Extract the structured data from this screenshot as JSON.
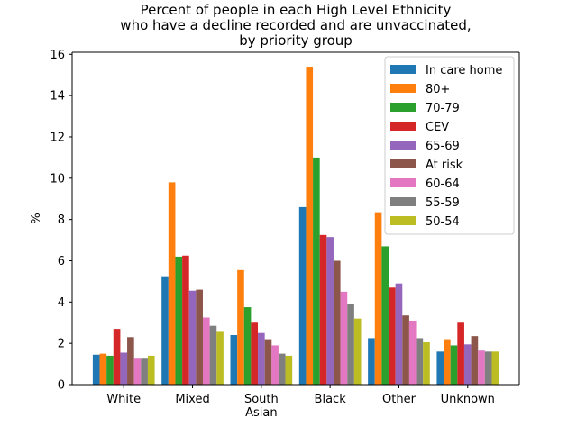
{
  "chart_data": {
    "type": "bar",
    "title": [
      "Percent of people in each High Level Ethnicity",
      "who have a decline recorded and are unvaccinated,",
      "by priority group"
    ],
    "xlabel": "",
    "ylabel": "%",
    "ylim": [
      0,
      16.1
    ],
    "yticks": [
      0,
      2,
      4,
      6,
      8,
      10,
      12,
      14,
      16
    ],
    "grid": false,
    "legend_position": "top-right",
    "categories": [
      [
        "White"
      ],
      [
        "Mixed"
      ],
      [
        "South",
        "Asian"
      ],
      [
        "Black"
      ],
      [
        "Other"
      ],
      [
        "Unknown"
      ]
    ],
    "series": [
      {
        "name": "In care home",
        "color": "#1f77b4",
        "values": [
          1.45,
          5.25,
          2.4,
          8.6,
          2.25,
          1.6
        ]
      },
      {
        "name": "80+",
        "color": "#ff7f0e",
        "values": [
          1.5,
          9.8,
          5.55,
          15.4,
          8.35,
          2.2
        ]
      },
      {
        "name": "70-79",
        "color": "#2ca02c",
        "values": [
          1.4,
          6.2,
          3.75,
          11.0,
          6.7,
          1.9
        ]
      },
      {
        "name": "CEV",
        "color": "#d62728",
        "values": [
          2.7,
          6.25,
          3.0,
          7.25,
          4.7,
          3.0
        ]
      },
      {
        "name": "65-69",
        "color": "#9467bd",
        "values": [
          1.55,
          4.55,
          2.5,
          7.15,
          4.9,
          1.95
        ]
      },
      {
        "name": "At risk",
        "color": "#8c564b",
        "values": [
          2.3,
          4.6,
          2.2,
          6.0,
          3.35,
          2.35
        ]
      },
      {
        "name": "60-64",
        "color": "#e377c2",
        "values": [
          1.3,
          3.25,
          1.9,
          4.5,
          3.1,
          1.65
        ]
      },
      {
        "name": "55-59",
        "color": "#7f7f7f",
        "values": [
          1.3,
          2.85,
          1.5,
          3.9,
          2.25,
          1.6
        ]
      },
      {
        "name": "50-54",
        "color": "#bcbd22",
        "values": [
          1.4,
          2.6,
          1.4,
          3.2,
          2.05,
          1.6
        ]
      }
    ]
  }
}
